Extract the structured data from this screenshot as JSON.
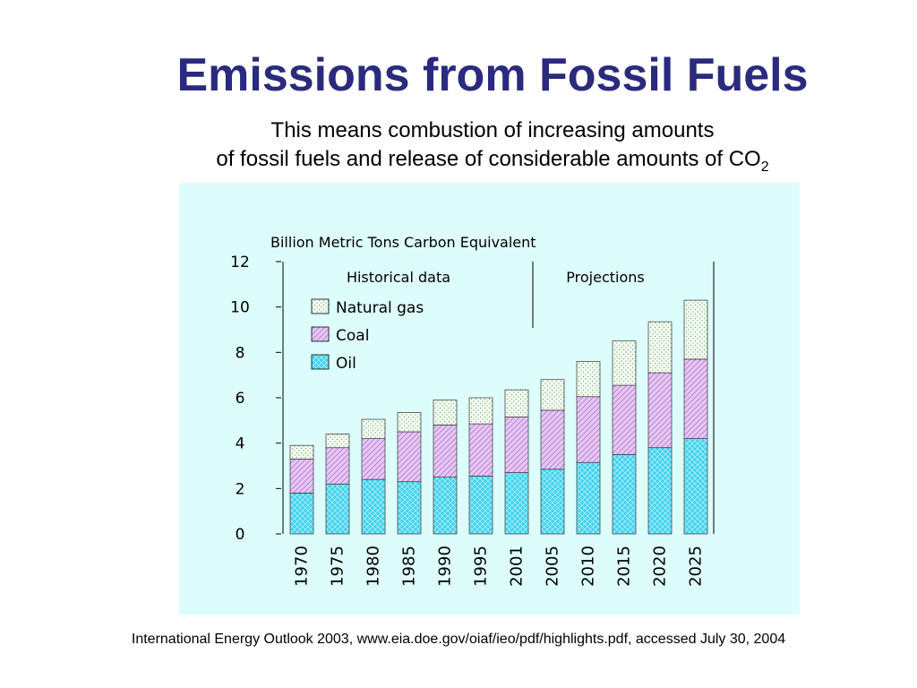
{
  "slide": {
    "title": "Emissions from Fossil Fuels",
    "subtitle_line1": "This means combustion of increasing amounts",
    "subtitle_line2": "of fossil fuels and release of considerable amounts of CO",
    "subtitle_subscript": "2",
    "source": "International Energy Outlook 2003, www.eia.doe.gov/oiaf/ieo/pdf/highlights.pdf, accessed July 30, 2004"
  },
  "colors": {
    "title": "#2a2a7e",
    "panel_background": "#ddfdfb",
    "oil": "#3fd3ee",
    "coal": "#e6c8f2",
    "natural_gas": "#f2fbf0"
  },
  "chart_data": {
    "type": "bar",
    "stacked": true,
    "title": "",
    "unit_label": "Billion Metric Tons Carbon Equivalent",
    "xlabel": "",
    "ylabel": "",
    "ylim": [
      0,
      12
    ],
    "yticks": [
      "0",
      "2",
      "4",
      "6",
      "8",
      "10",
      "12"
    ],
    "categories": [
      "1970",
      "1975",
      "1980",
      "1985",
      "1990",
      "1995",
      "2001",
      "2005",
      "2010",
      "2015",
      "2020",
      "2025"
    ],
    "section_labels": [
      "Historical data",
      "Projections"
    ],
    "legend": [
      "Natural gas",
      "Coal",
      "Oil"
    ],
    "legend_placement": "top-left",
    "grid": false,
    "series": [
      {
        "name": "Oil",
        "values": [
          1.8,
          2.2,
          2.4,
          2.3,
          2.5,
          2.55,
          2.7,
          2.85,
          3.15,
          3.5,
          3.8,
          4.2
        ]
      },
      {
        "name": "Coal",
        "values": [
          1.5,
          1.6,
          1.8,
          2.2,
          2.3,
          2.3,
          2.45,
          2.6,
          2.9,
          3.05,
          3.3,
          3.5
        ]
      },
      {
        "name": "Natural gas",
        "values": [
          0.6,
          0.6,
          0.85,
          0.85,
          1.1,
          1.15,
          1.2,
          1.35,
          1.55,
          1.95,
          2.25,
          2.6
        ]
      }
    ]
  }
}
